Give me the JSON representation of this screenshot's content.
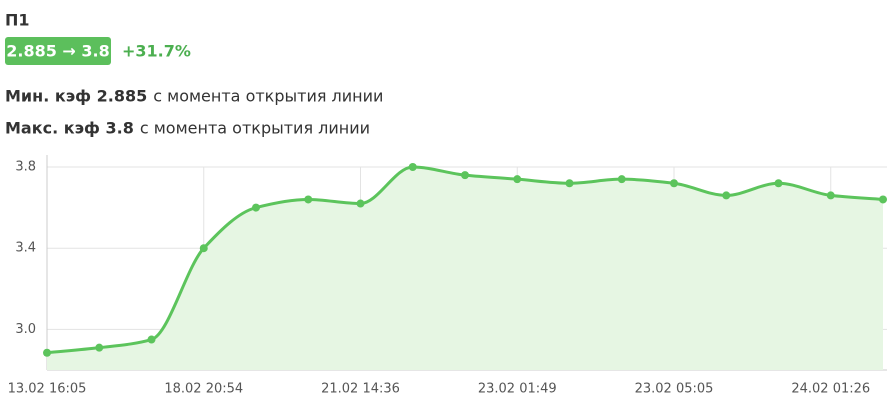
{
  "header": {
    "title": "П1",
    "badge": "2.885 → 3.8",
    "change": "+31.7%",
    "min_label": "Мин. кэф 2.885",
    "min_note": "с момента открытия линии",
    "max_label": "Макс. кэф 3.8",
    "max_note": "с момента открытия линии"
  },
  "chart_data": {
    "type": "area",
    "color": "#5cc45c",
    "fill": "#e6f6e3",
    "grid": true,
    "categories": [
      "13.02 16:05",
      null,
      null,
      "18.02 20:54",
      null,
      null,
      "21.02 14:36",
      null,
      null,
      "23.02 01:49",
      null,
      null,
      "23.02 05:05",
      null,
      null,
      "24.02 01:26",
      null
    ],
    "values": [
      2.885,
      2.91,
      2.95,
      3.4,
      3.6,
      3.64,
      3.62,
      3.8,
      3.76,
      3.74,
      3.72,
      3.74,
      3.72,
      3.66,
      3.72,
      3.66,
      3.64
    ],
    "ylim": [
      2.8,
      3.8
    ],
    "yticks": [
      {
        "value": 3,
        "label": "3.0"
      },
      3.4,
      3.8
    ]
  }
}
